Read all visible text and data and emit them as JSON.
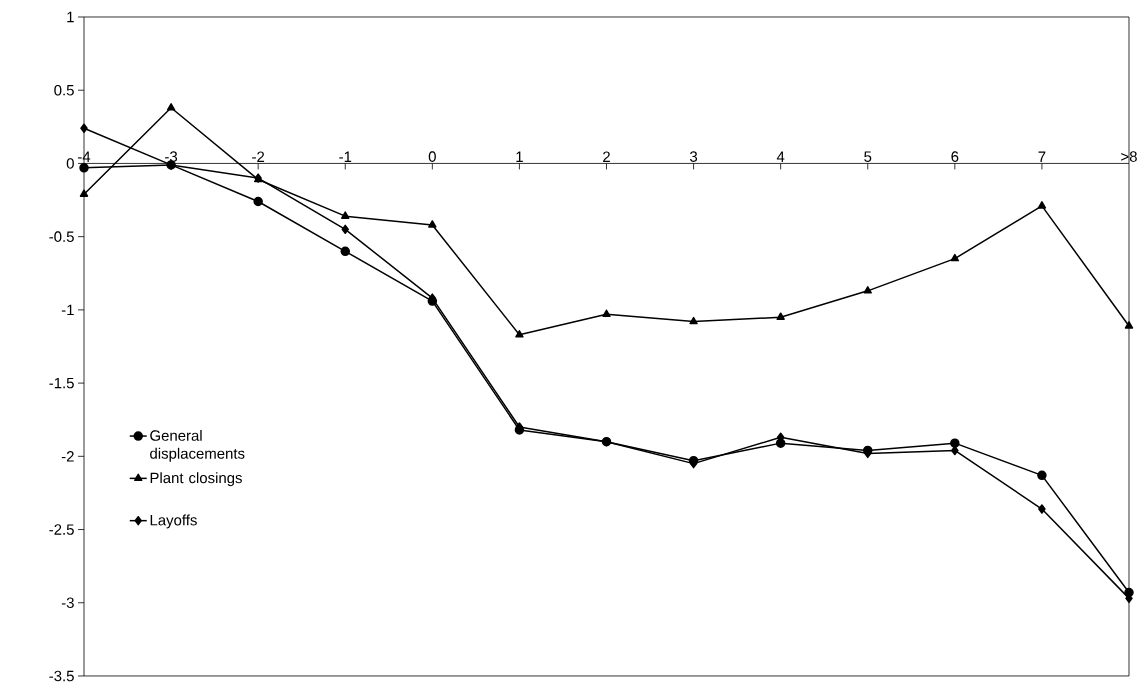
{
  "chart_data": {
    "type": "line",
    "categories": [
      "-4",
      "-3",
      "-2",
      "-1",
      "0",
      "1",
      "2",
      "3",
      "4",
      "5",
      "6",
      "7",
      ">8"
    ],
    "series": [
      {
        "name": "General displacements",
        "color": "#000000",
        "marker": "circle",
        "values": [
          -0.03,
          -0.01,
          -0.26,
          -0.6,
          -0.94,
          -1.82,
          -1.9,
          -2.03,
          -1.91,
          -1.96,
          -1.91,
          -2.13,
          -2.93
        ]
      },
      {
        "name": "Plant closings",
        "color": "#000000",
        "marker": "triangle",
        "values": [
          -0.21,
          0.38,
          -0.11,
          -0.36,
          -0.42,
          -1.17,
          -1.03,
          -1.08,
          -1.05,
          -0.87,
          -0.65,
          -0.29,
          -1.11
        ]
      },
      {
        "name": "Layoffs",
        "color": "#000000",
        "marker": "diamond",
        "values": [
          0.24,
          -0.01,
          -0.1,
          -0.45,
          -0.92,
          -1.8,
          -1.9,
          -2.05,
          -1.87,
          -1.98,
          -1.96,
          -2.36,
          -2.97
        ]
      }
    ],
    "ylim": [
      -3.5,
      1
    ],
    "yticks": [
      -3.5,
      -3,
      -2.5,
      -2,
      -1.5,
      -1,
      -0.5,
      0,
      0.5,
      1
    ],
    "grid": false,
    "legend": "left",
    "line_style": "solid"
  }
}
